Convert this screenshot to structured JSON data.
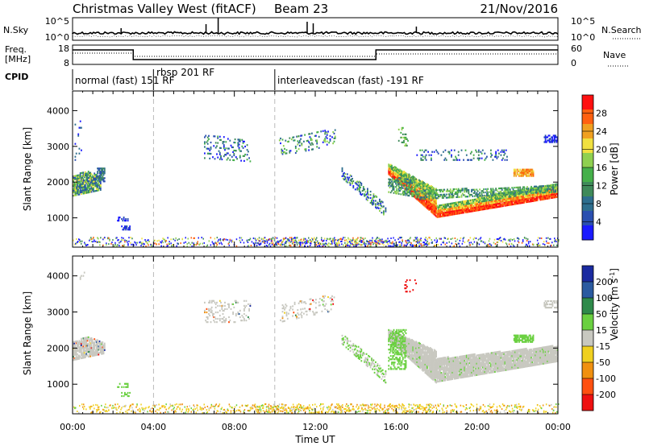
{
  "header": {
    "station": "Christmas Valley West (fitACF)",
    "beam": "Beam 23",
    "date": "21/Nov/2016"
  },
  "top_panel": {
    "left_label": "N.Sky",
    "right_label": "N.Search",
    "left_ticks": [
      "10^5",
      "10^0"
    ],
    "right_ticks": [
      "10^5",
      "10^0"
    ]
  },
  "freq_panel": {
    "left_label_1": "Freq.",
    "left_label_2": "[MHz]",
    "right_label": "Nave",
    "left_ticks": [
      "18",
      "8"
    ],
    "right_ticks": [
      "60",
      "0"
    ]
  },
  "cpid": {
    "label": "CPID",
    "segments": [
      {
        "text": "normal (fast) 151 RF",
        "start_h": 0.0
      },
      {
        "text": "rbsp 201 RF",
        "start_h": 4.0
      },
      {
        "text": "interleavedscan (fast) -191 RF",
        "start_h": 10.0
      }
    ]
  },
  "chart_data": [
    {
      "type": "heatmap",
      "name": "power",
      "ylabel": "Slant Range [km]",
      "ylim": [
        180,
        4550
      ],
      "xlim_hours": [
        0,
        24
      ],
      "y_ticks": [
        1000,
        2000,
        3000,
        4000
      ],
      "colorbar_label": "Power [dB]",
      "colorbar_ticks": [
        "4",
        "8",
        "12",
        "16",
        "20",
        "24",
        "28"
      ],
      "colorbar_colors": [
        "#1a1aff",
        "#2a4fb0",
        "#2e6e8e",
        "#3f8a5a",
        "#45b04a",
        "#8fd050",
        "#f0e040",
        "#f0a020",
        "#ff6010",
        "#ff1010"
      ]
    },
    {
      "type": "heatmap",
      "name": "velocity",
      "ylabel": "Slant Range [km]",
      "ylim": [
        180,
        4550
      ],
      "xlim_hours": [
        0,
        24
      ],
      "y_ticks": [
        1000,
        2000,
        3000,
        4000
      ],
      "colorbar_label": "Velocity [m s^-1]",
      "colorbar_ticks": [
        "200",
        "100",
        "50",
        "15",
        "-15",
        "-50",
        "-100",
        "-200"
      ],
      "colorbar_colors": [
        "#1a2aa0",
        "#2a5aa0",
        "#2e8a4a",
        "#6ad040",
        "#c8c8c0",
        "#f0d020",
        "#f09010",
        "#ff5010",
        "#ee1010"
      ]
    }
  ],
  "x_axis": {
    "label": "Time UT",
    "tick_labels": [
      "00:00",
      "04:00",
      "08:00",
      "12:00",
      "16:00",
      "20:00",
      "00:00"
    ],
    "tick_hours": [
      0,
      4,
      8,
      12,
      16,
      20,
      24
    ]
  },
  "mode_change_hours": [
    4.0,
    10.0
  ],
  "freq_step_hours": [
    3.0,
    15.0
  ]
}
